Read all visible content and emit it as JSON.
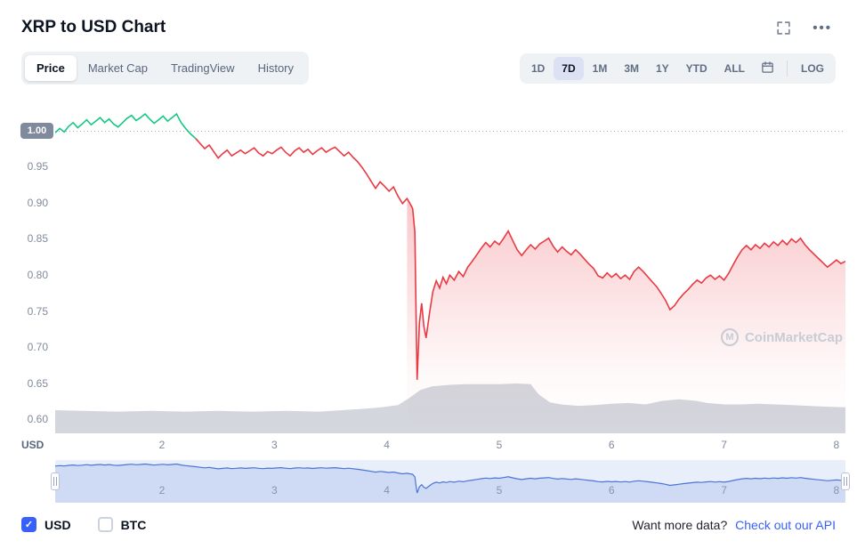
{
  "header": {
    "title": "XRP to USD Chart"
  },
  "icons": {
    "dots": "•••",
    "check": "✓"
  },
  "tabs": {
    "items": [
      {
        "label": "Price",
        "active": true
      },
      {
        "label": "Market Cap",
        "active": false
      },
      {
        "label": "TradingView",
        "active": false
      },
      {
        "label": "History",
        "active": false
      }
    ]
  },
  "range": {
    "items": [
      {
        "label": "1D",
        "active": false
      },
      {
        "label": "7D",
        "active": true
      },
      {
        "label": "1M",
        "active": false
      },
      {
        "label": "3M",
        "active": false
      },
      {
        "label": "1Y",
        "active": false
      },
      {
        "label": "YTD",
        "active": false
      },
      {
        "label": "ALL",
        "active": false
      }
    ],
    "log": "LOG"
  },
  "watermark": {
    "text": "CoinMarketCap",
    "logo_letter": "M"
  },
  "legend": {
    "usd_label": "USD",
    "btc_label": "BTC",
    "usd_checked": true,
    "btc_checked": false
  },
  "footer": {
    "prompt": "Want more data?",
    "link_label": "Check out our API"
  },
  "colors": {
    "up": "#16c784",
    "down": "#ea3943",
    "accent": "#3861fb",
    "volume": "#808a9d",
    "nav_line": "#4a74d8",
    "nav_bg": "#e9effa",
    "grid_dotted": "#a6adbb",
    "axis_text": "#808a9d",
    "badge_bg": "#808a9d"
  },
  "chart_data": {
    "type": "line",
    "title": "XRP to USD Chart",
    "timeframe": "7D",
    "currency": "USD",
    "xlim": [
      1.05,
      8.08
    ],
    "ylim": [
      0.582,
      1.045
    ],
    "baseline": 1.0,
    "split_x": 2.3,
    "fill_start_x": 4.18,
    "y_ticks": [
      {
        "label": "1.00",
        "value": 1.0,
        "badge": true
      },
      {
        "label": "0.95",
        "value": 0.95
      },
      {
        "label": "0.90",
        "value": 0.9
      },
      {
        "label": "0.85",
        "value": 0.85
      },
      {
        "label": "0.80",
        "value": 0.8
      },
      {
        "label": "0.75",
        "value": 0.75
      },
      {
        "label": "0.70",
        "value": 0.7
      },
      {
        "label": "0.65",
        "value": 0.65
      },
      {
        "label": "0.60",
        "value": 0.6
      }
    ],
    "x_ticks": [
      {
        "label": "2",
        "value": 2
      },
      {
        "label": "3",
        "value": 3
      },
      {
        "label": "4",
        "value": 4
      },
      {
        "label": "5",
        "value": 5
      },
      {
        "label": "6",
        "value": 6
      },
      {
        "label": "7",
        "value": 7
      },
      {
        "label": "8",
        "value": 8
      }
    ],
    "nav_ylim": [
      0.6,
      1.03
    ],
    "price": [
      [
        1.05,
        0.998
      ],
      [
        1.09,
        1.004
      ],
      [
        1.13,
        0.999
      ],
      [
        1.17,
        1.007
      ],
      [
        1.21,
        1.012
      ],
      [
        1.25,
        1.005
      ],
      [
        1.29,
        1.01
      ],
      [
        1.33,
        1.016
      ],
      [
        1.37,
        1.009
      ],
      [
        1.41,
        1.014
      ],
      [
        1.45,
        1.019
      ],
      [
        1.49,
        1.012
      ],
      [
        1.53,
        1.017
      ],
      [
        1.57,
        1.01
      ],
      [
        1.61,
        1.006
      ],
      [
        1.65,
        1.012
      ],
      [
        1.69,
        1.018
      ],
      [
        1.73,
        1.022
      ],
      [
        1.77,
        1.015
      ],
      [
        1.81,
        1.019
      ],
      [
        1.85,
        1.024
      ],
      [
        1.89,
        1.017
      ],
      [
        1.93,
        1.011
      ],
      [
        1.97,
        1.016
      ],
      [
        2.01,
        1.021
      ],
      [
        2.05,
        1.014
      ],
      [
        2.09,
        1.019
      ],
      [
        2.13,
        1.024
      ],
      [
        2.17,
        1.012
      ],
      [
        2.21,
        1.004
      ],
      [
        2.25,
        0.997
      ],
      [
        2.3,
        0.99
      ],
      [
        2.34,
        0.983
      ],
      [
        2.38,
        0.976
      ],
      [
        2.42,
        0.981
      ],
      [
        2.46,
        0.972
      ],
      [
        2.5,
        0.963
      ],
      [
        2.54,
        0.969
      ],
      [
        2.58,
        0.974
      ],
      [
        2.62,
        0.966
      ],
      [
        2.66,
        0.97
      ],
      [
        2.7,
        0.974
      ],
      [
        2.74,
        0.969
      ],
      [
        2.78,
        0.973
      ],
      [
        2.82,
        0.977
      ],
      [
        2.86,
        0.97
      ],
      [
        2.9,
        0.966
      ],
      [
        2.94,
        0.972
      ],
      [
        2.98,
        0.969
      ],
      [
        3.02,
        0.974
      ],
      [
        3.06,
        0.978
      ],
      [
        3.1,
        0.971
      ],
      [
        3.14,
        0.966
      ],
      [
        3.18,
        0.973
      ],
      [
        3.22,
        0.977
      ],
      [
        3.26,
        0.971
      ],
      [
        3.3,
        0.975
      ],
      [
        3.34,
        0.968
      ],
      [
        3.38,
        0.973
      ],
      [
        3.42,
        0.977
      ],
      [
        3.46,
        0.971
      ],
      [
        3.5,
        0.975
      ],
      [
        3.54,
        0.978
      ],
      [
        3.58,
        0.972
      ],
      [
        3.62,
        0.966
      ],
      [
        3.66,
        0.971
      ],
      [
        3.7,
        0.964
      ],
      [
        3.74,
        0.958
      ],
      [
        3.78,
        0.95
      ],
      [
        3.82,
        0.941
      ],
      [
        3.86,
        0.931
      ],
      [
        3.9,
        0.921
      ],
      [
        3.94,
        0.93
      ],
      [
        3.98,
        0.924
      ],
      [
        4.02,
        0.917
      ],
      [
        4.06,
        0.923
      ],
      [
        4.1,
        0.91
      ],
      [
        4.14,
        0.9
      ],
      [
        4.18,
        0.907
      ],
      [
        4.21,
        0.899
      ],
      [
        4.23,
        0.893
      ],
      [
        4.25,
        0.86
      ],
      [
        4.26,
        0.75
      ],
      [
        4.27,
        0.656
      ],
      [
        4.29,
        0.735
      ],
      [
        4.31,
        0.762
      ],
      [
        4.33,
        0.73
      ],
      [
        4.35,
        0.714
      ],
      [
        4.38,
        0.748
      ],
      [
        4.41,
        0.778
      ],
      [
        4.44,
        0.793
      ],
      [
        4.47,
        0.783
      ],
      [
        4.5,
        0.798
      ],
      [
        4.53,
        0.789
      ],
      [
        4.56,
        0.801
      ],
      [
        4.6,
        0.794
      ],
      [
        4.64,
        0.806
      ],
      [
        4.68,
        0.799
      ],
      [
        4.72,
        0.812
      ],
      [
        4.76,
        0.82
      ],
      [
        4.8,
        0.829
      ],
      [
        4.84,
        0.838
      ],
      [
        4.88,
        0.846
      ],
      [
        4.92,
        0.84
      ],
      [
        4.96,
        0.848
      ],
      [
        5.0,
        0.843
      ],
      [
        5.04,
        0.852
      ],
      [
        5.08,
        0.862
      ],
      [
        5.12,
        0.849
      ],
      [
        5.16,
        0.836
      ],
      [
        5.2,
        0.828
      ],
      [
        5.24,
        0.836
      ],
      [
        5.28,
        0.843
      ],
      [
        5.32,
        0.837
      ],
      [
        5.36,
        0.844
      ],
      [
        5.4,
        0.848
      ],
      [
        5.44,
        0.852
      ],
      [
        5.48,
        0.841
      ],
      [
        5.52,
        0.833
      ],
      [
        5.56,
        0.84
      ],
      [
        5.6,
        0.834
      ],
      [
        5.64,
        0.829
      ],
      [
        5.68,
        0.836
      ],
      [
        5.72,
        0.83
      ],
      [
        5.76,
        0.823
      ],
      [
        5.8,
        0.816
      ],
      [
        5.84,
        0.81
      ],
      [
        5.88,
        0.8
      ],
      [
        5.92,
        0.797
      ],
      [
        5.96,
        0.804
      ],
      [
        6.0,
        0.798
      ],
      [
        6.04,
        0.803
      ],
      [
        6.08,
        0.796
      ],
      [
        6.12,
        0.801
      ],
      [
        6.16,
        0.795
      ],
      [
        6.2,
        0.806
      ],
      [
        6.24,
        0.812
      ],
      [
        6.28,
        0.806
      ],
      [
        6.32,
        0.799
      ],
      [
        6.36,
        0.792
      ],
      [
        6.4,
        0.785
      ],
      [
        6.44,
        0.776
      ],
      [
        6.48,
        0.766
      ],
      [
        6.52,
        0.753
      ],
      [
        6.56,
        0.759
      ],
      [
        6.6,
        0.768
      ],
      [
        6.64,
        0.775
      ],
      [
        6.68,
        0.781
      ],
      [
        6.72,
        0.788
      ],
      [
        6.76,
        0.794
      ],
      [
        6.8,
        0.79
      ],
      [
        6.84,
        0.797
      ],
      [
        6.88,
        0.801
      ],
      [
        6.92,
        0.795
      ],
      [
        6.96,
        0.8
      ],
      [
        7.0,
        0.794
      ],
      [
        7.04,
        0.803
      ],
      [
        7.08,
        0.815
      ],
      [
        7.12,
        0.826
      ],
      [
        7.16,
        0.836
      ],
      [
        7.2,
        0.842
      ],
      [
        7.24,
        0.836
      ],
      [
        7.28,
        0.843
      ],
      [
        7.32,
        0.838
      ],
      [
        7.36,
        0.845
      ],
      [
        7.4,
        0.84
      ],
      [
        7.44,
        0.847
      ],
      [
        7.48,
        0.842
      ],
      [
        7.52,
        0.849
      ],
      [
        7.56,
        0.843
      ],
      [
        7.6,
        0.851
      ],
      [
        7.64,
        0.846
      ],
      [
        7.68,
        0.852
      ],
      [
        7.72,
        0.843
      ],
      [
        7.76,
        0.836
      ],
      [
        7.8,
        0.83
      ],
      [
        7.84,
        0.824
      ],
      [
        7.88,
        0.818
      ],
      [
        7.92,
        0.812
      ],
      [
        7.96,
        0.817
      ],
      [
        8.0,
        0.822
      ],
      [
        8.04,
        0.817
      ],
      [
        8.08,
        0.82
      ]
    ],
    "volume": [
      [
        1.05,
        0.614
      ],
      [
        1.3,
        0.613
      ],
      [
        1.6,
        0.612
      ],
      [
        1.9,
        0.613
      ],
      [
        2.2,
        0.612
      ],
      [
        2.5,
        0.613
      ],
      [
        2.8,
        0.612
      ],
      [
        3.1,
        0.613
      ],
      [
        3.4,
        0.612
      ],
      [
        3.6,
        0.614
      ],
      [
        3.8,
        0.616
      ],
      [
        3.95,
        0.618
      ],
      [
        4.1,
        0.621
      ],
      [
        4.2,
        0.631
      ],
      [
        4.3,
        0.642
      ],
      [
        4.4,
        0.647
      ],
      [
        4.55,
        0.649
      ],
      [
        4.7,
        0.65
      ],
      [
        4.85,
        0.65
      ],
      [
        5.0,
        0.65
      ],
      [
        5.15,
        0.651
      ],
      [
        5.28,
        0.65
      ],
      [
        5.35,
        0.636
      ],
      [
        5.45,
        0.625
      ],
      [
        5.55,
        0.622
      ],
      [
        5.7,
        0.62
      ],
      [
        5.85,
        0.621
      ],
      [
        6.0,
        0.623
      ],
      [
        6.15,
        0.624
      ],
      [
        6.3,
        0.622
      ],
      [
        6.45,
        0.627
      ],
      [
        6.6,
        0.629
      ],
      [
        6.75,
        0.627
      ],
      [
        6.85,
        0.624
      ],
      [
        7.0,
        0.622
      ],
      [
        7.15,
        0.622
      ],
      [
        7.3,
        0.623
      ],
      [
        7.45,
        0.622
      ],
      [
        7.6,
        0.621
      ],
      [
        7.75,
        0.62
      ],
      [
        7.9,
        0.619
      ],
      [
        8.08,
        0.618
      ]
    ]
  }
}
